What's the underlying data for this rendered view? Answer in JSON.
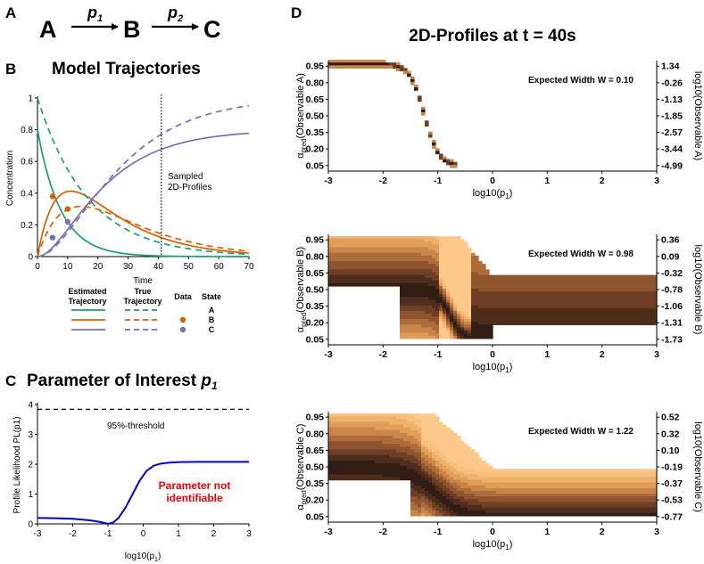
{
  "figure": {
    "panel_labels": {
      "a": "A",
      "b": "B",
      "c": "C",
      "d": "D"
    },
    "reaction": {
      "s1": "A",
      "s2": "B",
      "s3": "C",
      "r1": "p",
      "r1_sub": "1",
      "r2": "p",
      "r2_sub": "2"
    },
    "panel_b_title": "Model Trajectories",
    "panel_c_title": "Parameter of Interest ",
    "panel_c_title_p": "p",
    "panel_c_title_sub": "1",
    "panel_d_title": "2D-Profiles at t = 40s",
    "sampled_annotation_1": "Sampled",
    "sampled_annotation_2": "2D-Profiles",
    "threshold_label": "95%-threshold",
    "not_identifiable_1": "Parameter not",
    "not_identifiable_2": "identifiable",
    "legend": {
      "estimated_1": "Estimated",
      "estimated_2": "Trajectory",
      "true_1": "True",
      "true_2": "Trajectory",
      "data": "Data",
      "state": "State",
      "states": [
        "A",
        "B",
        "C"
      ]
    },
    "colors": {
      "A": "#1a9e77",
      "B": "#d95f02",
      "C": "#7570b3",
      "profile": "#0000cc",
      "threshold_text": "#e8000b"
    },
    "heatmap_label_fmt": "Expected Width W = ",
    "heatmaps": [
      {
        "ylabel_pre": "α",
        "ylabel_sub": "pred",
        "ylabel_post": "(Observable A)",
        "width": "0.10",
        "right_label": "log10(Observable A)",
        "right_ticks": [
          "1.34",
          "-0.26",
          "-1.13",
          "-1.85",
          "-2.57",
          "-3.44",
          "-4.99"
        ]
      },
      {
        "ylabel_pre": "α",
        "ylabel_sub": "pred",
        "ylabel_post": "(Observable B)",
        "width": "0.98",
        "right_label": "log10(Observable B)",
        "right_ticks": [
          "0.36",
          "0.09",
          "-0.32",
          "-0.78",
          "-1.06",
          "-1.31",
          "-1.73"
        ]
      },
      {
        "ylabel_pre": "α",
        "ylabel_sub": "pred",
        "ylabel_post": "(Observable C)",
        "width": "1.22",
        "right_label": "log10(Observable C)",
        "right_ticks": [
          "0.52",
          "0.32",
          "0.10",
          "-0.19",
          "-0.37",
          "-0.53",
          "-0.77"
        ]
      }
    ],
    "heatmap_left_ticks": [
      "0.95",
      "0.80",
      "0.65",
      "0.50",
      "0.35",
      "0.20",
      "0.05"
    ],
    "heatmap_x_ticks": [
      "-3",
      "-2",
      "-1",
      "0",
      "1",
      "2",
      "3"
    ],
    "x_label_pre": "log10(p",
    "x_label_sub": "1",
    "x_label_post": ")"
  },
  "chart_data": [
    {
      "type": "line",
      "panel": "B",
      "title": "Model Trajectories",
      "xlabel": "Time",
      "ylabel": "Concentration",
      "xlim": [
        0,
        70
      ],
      "ylim": [
        0,
        1
      ],
      "xticks": [
        "0",
        "10",
        "20",
        "30",
        "40",
        "50",
        "60",
        "70"
      ],
      "yticks": [
        "0",
        "0.2",
        "0.4",
        "0.6",
        "0.8",
        "1"
      ],
      "vline_x": 41,
      "series": [
        {
          "name": "A estimated",
          "state": "A",
          "style": "solid",
          "k1": 0.13,
          "k2": 0.06,
          "scale": 0.8
        },
        {
          "name": "B estimated",
          "state": "B",
          "style": "solid",
          "k1": 0.13,
          "k2": 0.06,
          "scale": 0.8
        },
        {
          "name": "C estimated",
          "state": "C",
          "style": "solid",
          "k1": 0.13,
          "k2": 0.06,
          "scale": 0.8
        },
        {
          "name": "A true",
          "state": "A",
          "style": "dashed",
          "k1": 0.06,
          "k2": 0.08,
          "scale": 1.0
        },
        {
          "name": "B true",
          "state": "B",
          "style": "dashed",
          "k1": 0.06,
          "k2": 0.08,
          "scale": 1.0
        },
        {
          "name": "C true",
          "state": "C",
          "style": "dashed",
          "k1": 0.06,
          "k2": 0.08,
          "scale": 1.0
        }
      ],
      "data_points": [
        {
          "state": "B",
          "x": 5,
          "y": 0.38
        },
        {
          "state": "B",
          "x": 10,
          "y": 0.3
        },
        {
          "state": "C",
          "x": 5,
          "y": 0.12
        },
        {
          "state": "C",
          "x": 10,
          "y": 0.22
        }
      ]
    },
    {
      "type": "line",
      "panel": "C",
      "title": "Parameter of Interest p1",
      "xlabel": "log10(p1)",
      "ylabel": "Profile Likelihood PL(p1)",
      "xlim": [
        -3,
        3
      ],
      "ylim": [
        0,
        4
      ],
      "xticks": [
        "-3",
        "-2",
        "-1",
        "0",
        "1",
        "2",
        "3"
      ],
      "yticks": [
        "0",
        "1",
        "2",
        "3",
        "4"
      ],
      "threshold": 3.84,
      "x": [
        -3.0,
        -2.5,
        -2.0,
        -1.5,
        -1.2,
        -1.0,
        -0.85,
        -0.7,
        -0.5,
        -0.3,
        -0.1,
        0.1,
        0.3,
        0.5,
        0.7,
        1.0,
        1.5,
        2.0,
        2.5,
        3.0
      ],
      "y": [
        0.2,
        0.19,
        0.17,
        0.12,
        0.06,
        0.0,
        0.05,
        0.2,
        0.55,
        1.0,
        1.45,
        1.78,
        1.95,
        2.02,
        2.05,
        2.07,
        2.08,
        2.08,
        2.08,
        2.08
      ]
    }
  ]
}
